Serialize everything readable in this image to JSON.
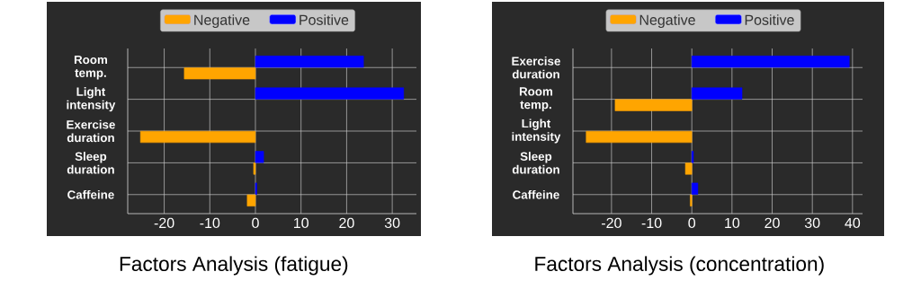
{
  "chart_data": [
    {
      "type": "bar",
      "orientation": "horizontal",
      "title": "Factors Analysis (fatigue)",
      "categories": [
        "Room temp.",
        "Light intensity",
        "Exercise duration",
        "Sleep duration",
        "Caffeine"
      ],
      "series": [
        {
          "name": "Negative",
          "color": "#ffa500",
          "values": [
            -15.6,
            null,
            -25.2,
            -0.4,
            -1.8
          ]
        },
        {
          "name": "Positive",
          "color": "#0000ff",
          "values": [
            23.7,
            32.5,
            null,
            1.8,
            0.3
          ]
        }
      ],
      "xlim": [
        -28,
        35.3
      ],
      "xticks": [
        -20,
        -10,
        0,
        10,
        20,
        30
      ],
      "grid": true,
      "legend": "top"
    },
    {
      "type": "bar",
      "orientation": "horizontal",
      "title": "Factors Analysis (concentration)",
      "categories": [
        "Exercise duration",
        "Room temp.",
        "Light intensity",
        "Sleep duration",
        "Caffeine"
      ],
      "series": [
        {
          "name": "Negative",
          "color": "#ffa500",
          "values": [
            null,
            -19.1,
            -26.3,
            -1.6,
            -0.4
          ]
        },
        {
          "name": "Positive",
          "color": "#0000ff",
          "values": [
            39.2,
            12.5,
            null,
            0.4,
            1.5
          ]
        }
      ],
      "xlim": [
        -29.6,
        42.5
      ],
      "xticks": [
        -20,
        -10,
        0,
        10,
        20,
        30,
        40
      ],
      "grid": true,
      "legend": "top"
    }
  ]
}
